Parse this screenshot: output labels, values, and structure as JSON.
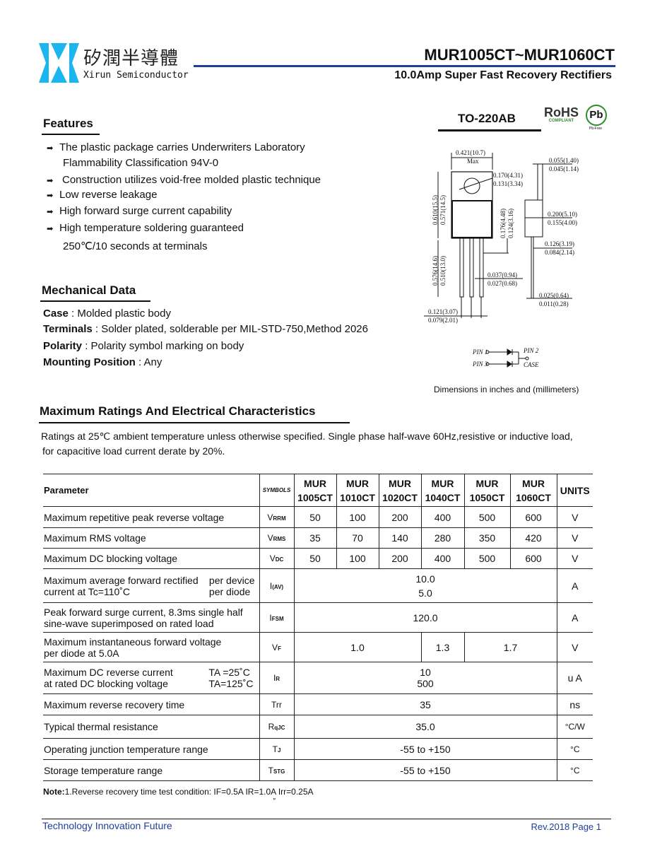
{
  "brand": {
    "name_cn": "矽潤半導體",
    "name_en": "Xirun Semiconductor",
    "logo_color": "#1bb6f0"
  },
  "header": {
    "title": "MUR1005CT~MUR1060CT",
    "subtitle": "10.0Amp Super Fast Recovery Rectifiers",
    "rule_color": "#1f3f9a"
  },
  "package": {
    "name": "TO-220AB",
    "rohs": "RoHS",
    "rohs_sub": "COMPLIANT",
    "pb": "Pb",
    "pb_sub": "Pb-Free",
    "dims_note": "Dimensions in inches and (millimeters)"
  },
  "dims": {
    "w_max": "0.421(10.7)",
    "max": "Max",
    "hole_a": "0.170(4.31)",
    "hole_b": "0.131(3.34)",
    "h_a": "0.610(15.5)",
    "h_b": "0.571(14.5)",
    "m_a": "0.176(4.48)",
    "m_b": "0.124(3.16)",
    "l_a": "0.576(14.6)",
    "l_b": "0.510(13.0)",
    "lw_a": "0.037(0.94)",
    "lw_b": "0.027(0.68)",
    "p_a": "0.121(3.07)",
    "p_b": "0.079(2.01)",
    "t_a": "0.055(1.40)",
    "t_b": "0.045(1.14)",
    "b_a": "0.200(5.10)",
    "b_b": "0.155(4.00)",
    "s_a": "0.126(3.19)",
    "s_b": "0.084(2.14)",
    "lt_a": "0.025(0.64)",
    "lt_b": "0.011(0.28)"
  },
  "pins": {
    "pin1": "PIN 1",
    "pin2": "PIN 2",
    "pin3": "PIN 3",
    "case": "CASE"
  },
  "features": {
    "title": "Features",
    "items": [
      "The plastic package carries Underwriters Laboratory",
      "Flammability Classification 94V-0",
      "Construction utilizes void-free molded plastic technique",
      "Low reverse leakage",
      "High forward surge current capability",
      "High temperature soldering guaranteed",
      "250℃/10 seconds at terminals"
    ]
  },
  "mechanical": {
    "title": "Mechanical  Data",
    "items": [
      {
        "label": "Case",
        "value": " : Molded plastic body"
      },
      {
        "label": "Terminals",
        "value": " : Solder plated, solderable per MIL-STD-750,Method 2026"
      },
      {
        "label": "Polarity",
        "value": " : Polarity symbol  marking on body"
      },
      {
        "label": "Mounting Position",
        "value": " : Any"
      }
    ]
  },
  "ratings": {
    "title": "Maximum Ratings And Electrical Characteristics",
    "note1": "Ratings at 25℃ ambient temperature unless otherwise specified.  Single phase half-wave 60Hz,resistive or inductive load,",
    "note2": "for capacitive load current derate by 20%."
  },
  "table": {
    "h_param": "Parameter",
    "h_symbols": "SYMBOLS",
    "h_units": "UNITS",
    "models": [
      [
        "MUR",
        "1005CT"
      ],
      [
        "MUR",
        "1010CT"
      ],
      [
        "MUR",
        "1020CT"
      ],
      [
        "MUR",
        "1040CT"
      ],
      [
        "MUR",
        "1050CT"
      ],
      [
        "MUR",
        "1060CT"
      ]
    ],
    "vrrm": {
      "param": "Maximum repetitive peak reverse voltage",
      "sym": "V",
      "sub": "RRM",
      "values": [
        "50",
        "100",
        "200",
        "400",
        "500",
        "600"
      ],
      "unit": "V"
    },
    "vrms": {
      "param": "Maximum RMS voltage",
      "sym": "V",
      "sub": "RMS",
      "values": [
        "35",
        "70",
        "140",
        "280",
        "350",
        "420"
      ],
      "unit": "V"
    },
    "vdc": {
      "param": "Maximum DC blocking voltage",
      "sym": "V",
      "sub": "DC",
      "values": [
        "50",
        "100",
        "200",
        "400",
        "500",
        "600"
      ],
      "unit": "V"
    },
    "iav": {
      "param1": "Maximum average forward rectified",
      "param2": "current at Tc=110˚C",
      "cond1": "per device",
      "cond2": "per diode",
      "sym": "I",
      "sub": "(AV)",
      "v1": "10.0",
      "v2": "5.0",
      "unit": "A"
    },
    "ifsm": {
      "param1": "Peak forward surge current, 8.3ms single half",
      "param2": " sine-wave superimposed on rated load",
      "sym": "I",
      "sub": "FSM",
      "value": "120.0",
      "unit": "A"
    },
    "vf": {
      "param1": "Maximum instantaneous forward voltage",
      "param2": " per diode at 5.0A",
      "sym": "V",
      "sub": "F",
      "v1": "1.0",
      "v2": "1.3",
      "v3": "1.7",
      "unit": "V"
    },
    "ir": {
      "param1": "Maximum DC reverse current",
      "param2": "at rated DC blocking voltage",
      "cond1": "TA =25˚C",
      "cond2": "TA=125˚C",
      "sym": "I",
      "sub": "R",
      "v1": "10",
      "v2": "500",
      "unit": "u A"
    },
    "trr": {
      "param": "Maximum reverse recovery time",
      "sym": "Trr",
      "value": "35",
      "unit": "ns"
    },
    "rth": {
      "param": "Typical thermal resistance",
      "sym": "R",
      "sub": "qJC",
      "value": "35.0",
      "unit": "°C/W"
    },
    "tj": {
      "param": "Operating junction  temperature range",
      "sym": "T",
      "sub": "J",
      "value": "-55 to +150",
      "unit": "°C"
    },
    "tstg": {
      "param": "Storage temperature range",
      "sym": "T",
      "sub": "STG",
      "value": "-55 to +150",
      "unit": "°C"
    }
  },
  "note": {
    "label": "Note:",
    "text": "1.Reverse recovery time test condition: IF=0.5A  IR=1.0A Irr=0.25A",
    "mark": "″"
  },
  "footer": {
    "left": "Technology  Innovation   Future",
    "right": "Rev.2018   Page 1",
    "color": "#1f3f9a"
  }
}
